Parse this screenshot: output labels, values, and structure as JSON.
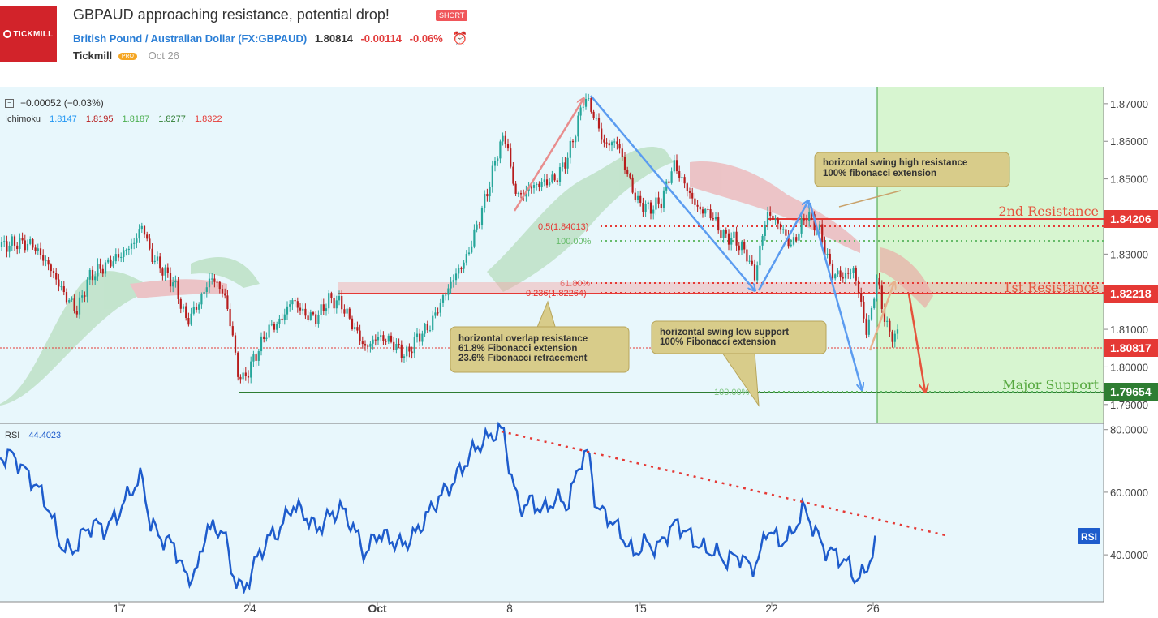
{
  "header": {
    "logo_text": "TICKMILL",
    "title": "GBPAUD approaching resistance, potential drop!",
    "badge": "SHORT",
    "symbol_name": "British Pound / Australian Dollar (FX:GBPAUD)",
    "price": "1.80814",
    "change": "-0.00114",
    "change_pct": "-0.06%",
    "author": "Tickmill",
    "author_badge": "PRO",
    "date": "Oct 26"
  },
  "legend": {
    "change_line": "−0.00052 (−0.03%)",
    "ichimoku_label": "Ichimoku",
    "ichimoku_values": [
      "1.8147",
      "1.8195",
      "1.8187",
      "1.8277",
      "1.8322"
    ],
    "ichimoku_colors": [
      "#2196f3",
      "#b71c1c",
      "#4caf50",
      "#2e7d32",
      "#e53935"
    ],
    "rsi_label": "RSI",
    "rsi_value": "44.4023"
  },
  "chart_data": [
    {
      "type": "candlestick",
      "ylim": [
        1.785,
        1.8745
      ],
      "y_ticks": [
        "1.87000",
        "1.86000",
        "1.85000",
        "1.84000",
        "1.83000",
        "1.82000",
        "1.81000",
        "1.80000",
        "1.79000"
      ],
      "x_ticks": [
        "17",
        "24",
        "Oct",
        "8",
        "15",
        "22",
        "26"
      ],
      "price_path": [
        [
          0,
          1.832
        ],
        [
          20,
          1.833
        ],
        [
          40,
          1.8325
        ],
        [
          60,
          1.827
        ],
        [
          80,
          1.819
        ],
        [
          95,
          1.815
        ],
        [
          110,
          1.824
        ],
        [
          130,
          1.827
        ],
        [
          150,
          1.83
        ],
        [
          165,
          1.833
        ],
        [
          176,
          1.838
        ],
        [
          185,
          1.83
        ],
        [
          200,
          1.826
        ],
        [
          215,
          1.822
        ],
        [
          230,
          1.812
        ],
        [
          245,
          1.817
        ],
        [
          260,
          1.824
        ],
        [
          275,
          1.82
        ],
        [
          285,
          1.811
        ],
        [
          292,
          1.799
        ],
        [
          300,
          1.7965
        ],
        [
          315,
          1.803
        ],
        [
          330,
          1.81
        ],
        [
          345,
          1.812
        ],
        [
          360,
          1.818
        ],
        [
          375,
          1.814
        ],
        [
          390,
          1.813
        ],
        [
          405,
          1.818
        ],
        [
          420,
          1.817
        ],
        [
          435,
          1.811
        ],
        [
          450,
          1.805
        ],
        [
          465,
          1.808
        ],
        [
          480,
          1.807
        ],
        [
          500,
          1.803
        ],
        [
          515,
          1.808
        ],
        [
          530,
          1.811
        ],
        [
          545,
          1.818
        ],
        [
          560,
          1.824
        ],
        [
          575,
          1.829
        ],
        [
          590,
          1.839
        ],
        [
          605,
          1.85
        ],
        [
          615,
          1.859
        ],
        [
          625,
          1.861
        ],
        [
          630,
          1.85
        ],
        [
          640,
          1.845
        ],
        [
          655,
          1.848
        ],
        [
          670,
          1.849
        ],
        [
          685,
          1.85
        ],
        [
          700,
          1.856
        ],
        [
          712,
          1.865
        ],
        [
          720,
          1.872
        ],
        [
          730,
          1.868
        ],
        [
          745,
          1.859
        ],
        [
          760,
          1.86
        ],
        [
          775,
          1.85
        ],
        [
          785,
          1.844
        ],
        [
          800,
          1.842
        ],
        [
          815,
          1.844
        ],
        [
          830,
          1.854
        ],
        [
          845,
          1.848
        ],
        [
          860,
          1.842
        ],
        [
          875,
          1.841
        ],
        [
          890,
          1.835
        ],
        [
          905,
          1.834
        ],
        [
          920,
          1.83
        ],
        [
          930,
          1.824
        ],
        [
          945,
          1.841
        ],
        [
          960,
          1.838
        ],
        [
          975,
          1.832
        ],
        [
          995,
          1.841
        ],
        [
          1010,
          1.836
        ],
        [
          1025,
          1.825
        ],
        [
          1040,
          1.824
        ],
        [
          1052,
          1.826
        ],
        [
          1060,
          1.818
        ],
        [
          1068,
          1.809
        ],
        [
          1075,
          1.816
        ],
        [
          1080,
          1.824
        ],
        [
          1088,
          1.815
        ],
        [
          1095,
          1.809
        ],
        [
          1105,
          1.8082
        ]
      ],
      "price_levels": [
        {
          "label": "2nd Resistance",
          "value": "1.84206"
        },
        {
          "label": "1st Resistance",
          "value": "1.82218"
        },
        {
          "label": "Major Support",
          "value": "1.79654"
        },
        {
          "label": "",
          "value": "1.80817"
        }
      ],
      "fibonacci_labels": [
        "0.5(1.84013)",
        "100.00%",
        "61.80%",
        "0.236(1.82264)",
        "100.00%"
      ],
      "annotations": [
        {
          "lines": [
            "horizontal swing high resistance",
            "100% fibonacci extension"
          ]
        },
        {
          "lines": [
            "horizontal overlap resistance",
            "61.8% Fibonacci extension",
            "23.6% Fibonacci retracement"
          ]
        },
        {
          "lines": [
            "horizontal swing low support",
            "100% Fibonacci extension"
          ]
        }
      ]
    },
    {
      "type": "line",
      "series": [
        {
          "name": "RSI",
          "values": [
            [
              0,
              71
            ],
            [
              15,
              72
            ],
            [
              30,
              67
            ],
            [
              45,
              62
            ],
            [
              60,
              55
            ],
            [
              75,
              43
            ],
            [
              90,
              41
            ],
            [
              100,
              46
            ],
            [
              115,
              50
            ],
            [
              130,
              48
            ],
            [
              145,
              53
            ],
            [
              160,
              60
            ],
            [
              175,
              65
            ],
            [
              185,
              50
            ],
            [
              200,
              45
            ],
            [
              215,
              43
            ],
            [
              230,
              32
            ],
            [
              245,
              36
            ],
            [
              255,
              50
            ],
            [
              265,
              47
            ],
            [
              275,
              49
            ],
            [
              285,
              35
            ],
            [
              300,
              28
            ],
            [
              315,
              38
            ],
            [
              330,
              45
            ],
            [
              345,
              48
            ],
            [
              360,
              56
            ],
            [
              375,
              53
            ],
            [
              390,
              48
            ],
            [
              405,
              52
            ],
            [
              420,
              55
            ],
            [
              435,
              49
            ],
            [
              450,
              40
            ],
            [
              465,
              47
            ],
            [
              480,
              45
            ],
            [
              495,
              43
            ],
            [
              510,
              46
            ],
            [
              525,
              52
            ],
            [
              540,
              58
            ],
            [
              555,
              62
            ],
            [
              570,
              68
            ],
            [
              585,
              74
            ],
            [
              600,
              77
            ],
            [
              610,
              79
            ],
            [
              620,
              80
            ],
            [
              630,
              65
            ],
            [
              640,
              55
            ],
            [
              655,
              57
            ],
            [
              670,
              54
            ],
            [
              685,
              58
            ],
            [
              700,
              56
            ],
            [
              715,
              70
            ],
            [
              725,
              73
            ],
            [
              735,
              55
            ],
            [
              750,
              52
            ],
            [
              765,
              47
            ],
            [
              780,
              40
            ],
            [
              795,
              44
            ],
            [
              810,
              42
            ],
            [
              825,
              48
            ],
            [
              835,
              50
            ],
            [
              850,
              46
            ],
            [
              865,
              42
            ],
            [
              880,
              41
            ],
            [
              895,
              38
            ],
            [
              910,
              40
            ],
            [
              925,
              36
            ],
            [
              935,
              38
            ],
            [
              945,
              49
            ],
            [
              960,
              44
            ],
            [
              975,
              46
            ],
            [
              990,
              55
            ],
            [
              1000,
              50
            ],
            [
              1015,
              42
            ],
            [
              1030,
              40
            ],
            [
              1045,
              37
            ],
            [
              1055,
              32
            ],
            [
              1065,
              34
            ],
            [
              1080,
              44
            ]
          ]
        }
      ],
      "ylim": [
        25,
        82
      ],
      "y_ticks": [
        "80.0000",
        "60.0000",
        "40.0000"
      ],
      "badge": "RSI"
    }
  ],
  "colors": {
    "up": "#26a69a",
    "down": "#b71c1c",
    "resistance": "#e53935",
    "support": "#43a047",
    "blue_arrow": "#5b9cf0",
    "forecast_area": "#d7f5d0",
    "annotation_bg": "#d8cc8a",
    "rsi_line": "#1e5ccc",
    "plot_bg": "#e8f7fc"
  }
}
